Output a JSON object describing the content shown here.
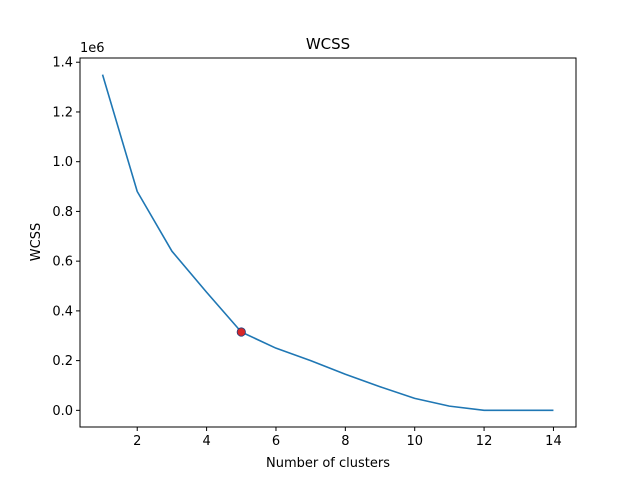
{
  "chart_data": {
    "type": "line",
    "title": "WCSS",
    "xlabel": "Number of clusters",
    "ylabel": "WCSS",
    "offset_text": "1e6",
    "x_unit": "",
    "y_multiplier": 1000000,
    "xlim": [
      0.35,
      14.65
    ],
    "ylim": [
      -0.067,
      1.417
    ],
    "x_ticks": [
      2,
      4,
      6,
      8,
      10,
      12,
      14
    ],
    "y_ticks": [
      0.0,
      0.2,
      0.4,
      0.6,
      0.8,
      1.0,
      1.2,
      1.4
    ],
    "x_tick_labels": [
      "2",
      "4",
      "6",
      "8",
      "10",
      "12",
      "14"
    ],
    "y_tick_labels": [
      "0.0",
      "0.2",
      "0.4",
      "0.6",
      "0.8",
      "1.0",
      "1.2",
      "1.4"
    ],
    "series": [
      {
        "x": [
          1,
          2,
          3,
          4,
          5,
          6,
          7,
          8,
          9,
          10,
          11,
          12,
          13,
          14
        ],
        "y": [
          1.35,
          0.88,
          0.64,
          0.475,
          0.315,
          0.25,
          0.2,
          0.145,
          0.095,
          0.048,
          0.017,
          0.0,
          0.0,
          0.0
        ],
        "color": "#1f77b4"
      }
    ],
    "highlight": {
      "x": 5,
      "y": 0.315,
      "color": "#d62728"
    },
    "grid": false,
    "legend": "none"
  }
}
